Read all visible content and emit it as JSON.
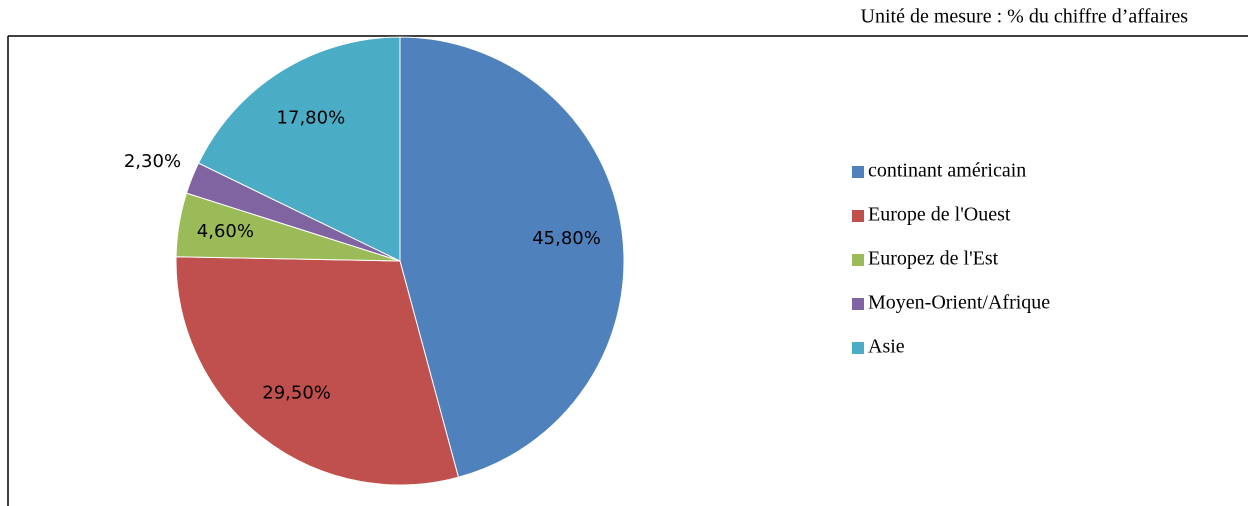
{
  "chart_data": {
    "type": "pie",
    "subtitle": "Unité de mesure : % du chiffre d’affaires",
    "categories": [
      "continant américain",
      "Europe de l'Ouest",
      "Europez de l'Est",
      "Moyen-Orient/Afrique",
      "Asie"
    ],
    "values": [
      45.8,
      29.5,
      4.6,
      2.3,
      17.8
    ],
    "value_labels": [
      "45,80%",
      "29,50%",
      "4,60%",
      "2,30%",
      "17,80%"
    ],
    "colors": [
      "#4f81bd",
      "#c0504d",
      "#9bbb59",
      "#8064a2",
      "#4bacc6"
    ],
    "legend": "right"
  }
}
